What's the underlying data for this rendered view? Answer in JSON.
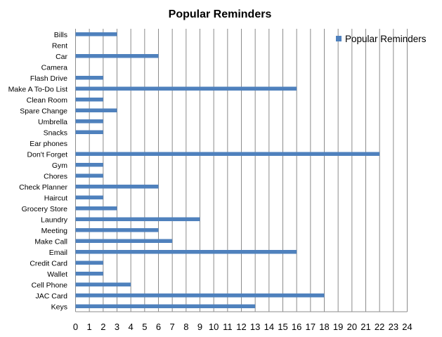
{
  "chart_data": {
    "type": "bar",
    "orientation": "horizontal",
    "title": "Popular Reminders",
    "xlabel": "",
    "ylabel": "",
    "xlim": [
      0,
      24
    ],
    "x_ticks": [
      "0",
      "1",
      "2",
      "3",
      "4",
      "5",
      "6",
      "7",
      "8",
      "9",
      "10",
      "11",
      "12",
      "13",
      "14",
      "15",
      "16",
      "17",
      "18",
      "19",
      "20",
      "21",
      "22",
      "23",
      "24"
    ],
    "grid": "vertical",
    "legend_position": "top-right",
    "categories": [
      "Bills",
      "Rent",
      "Car",
      "Camera",
      "Flash Drive",
      "Make A To-Do List",
      "Clean Room",
      "Spare Change",
      "Umbrella",
      "Snacks",
      "Ear phones",
      "Don't Forget",
      "Gym",
      "Chores",
      "Check Planner",
      "Haircut",
      "Grocery Store",
      "Laundry",
      "Meeting",
      "Make Call",
      "Email",
      "Credit Card",
      "Wallet",
      "Cell Phone",
      "JAC Card",
      "Keys"
    ],
    "series": [
      {
        "name": "Popular Reminders",
        "color": "#4f81bd",
        "values": [
          3,
          0,
          6,
          0,
          2,
          16,
          2,
          3,
          2,
          2,
          0,
          22,
          2,
          2,
          6,
          2,
          3,
          9,
          6,
          7,
          16,
          2,
          2,
          4,
          18,
          13
        ]
      }
    ]
  }
}
